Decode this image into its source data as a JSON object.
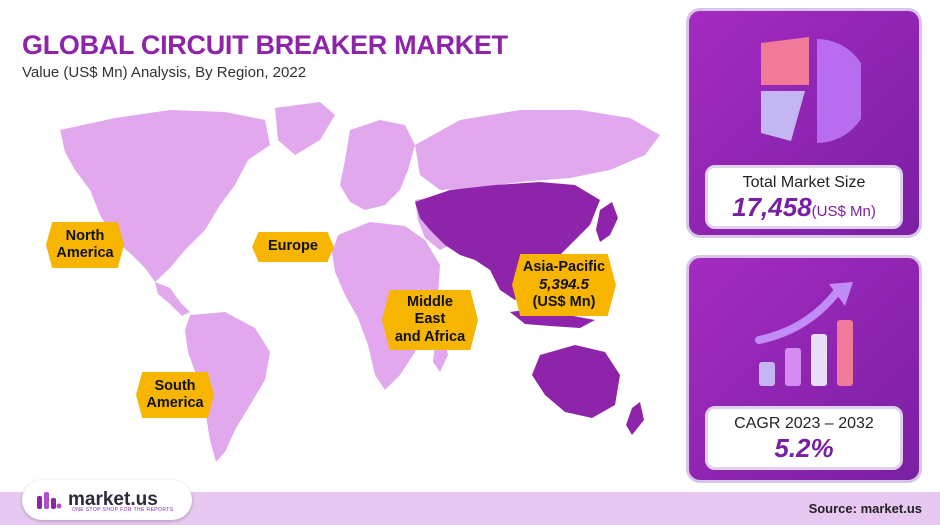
{
  "header": {
    "title": "GLOBAL CIRCUIT BREAKER MARKET",
    "subtitle": "Value (US$ Mn) Analysis, By Region, 2022"
  },
  "regions": {
    "north_america": {
      "line1": "North",
      "line2": "America"
    },
    "europe": {
      "label": "Europe"
    },
    "middle_east_africa": {
      "line1": "Middle",
      "line2": "East",
      "line3": "and Africa"
    },
    "south_america": {
      "line1": "South",
      "line2": "America"
    },
    "asia_pacific": {
      "line1": "Asia-Pacific",
      "value": "5,394.5",
      "unit": "(US$ Mn)"
    }
  },
  "market_size": {
    "label": "Total Market Size",
    "value": "17,458",
    "unit": "(US$ Mn)"
  },
  "cagr": {
    "label": "CAGR 2023 – 2032",
    "value": "5.2%"
  },
  "footer": {
    "brand": "market.us",
    "tagline": "ONE STOP SHOP FOR THE REPORTS",
    "source": "Source: market.us"
  },
  "colors": {
    "title": "#8e24aa",
    "map_land": "#e1a8ee",
    "map_highlight": "#8e24aa",
    "badge": "#f7b500",
    "panel": "#9b27bf",
    "footer": "#e6c8f0"
  },
  "icons": {
    "pie": "pie-chart-icon",
    "growth": "growth-chart-icon",
    "logo": "market-us-logo-icon"
  }
}
